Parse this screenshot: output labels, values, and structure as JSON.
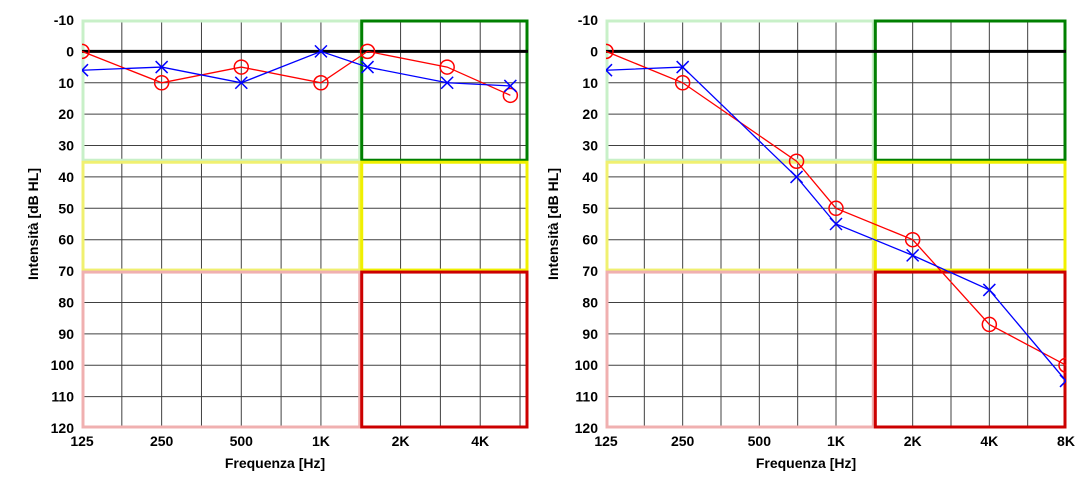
{
  "colors": {
    "right_ear": "#ff0000",
    "left_ear": "#0000ff",
    "zero_line": "#000000",
    "zone_normal": "#c8f0c8",
    "zone_normal_hf": "#008000",
    "zone_mild": "#f0f070",
    "zone_mild_hf": "#f0f000",
    "zone_severe": "#f0b0b0",
    "zone_severe_hf": "#cc0000"
  },
  "chart_data": [
    {
      "type": "line",
      "xlabel": "Frequenza [Hz]",
      "ylabel": "Intensità [dB HL]",
      "x_ticks": [
        "125",
        "250",
        "500",
        "1K",
        "2K",
        "4K"
      ],
      "y_ticks": [
        "-10",
        "0",
        "10",
        "20",
        "30",
        "40",
        "50",
        "60",
        "70",
        "80",
        "90",
        "100",
        "110",
        "120"
      ],
      "ylim": [
        -10,
        120
      ],
      "y_inverted": true,
      "x_scale": "octave",
      "grid": true,
      "series": [
        {
          "marker": "circle",
          "color": "#ff0000",
          "points": [
            {
              "x": 125,
              "y": 0
            },
            {
              "x": 250,
              "y": 10
            },
            {
              "x": 500,
              "y": 5
            },
            {
              "x": 1000,
              "y": 10
            },
            {
              "x": 1500,
              "y": 0
            },
            {
              "x": 3000,
              "y": 5
            },
            {
              "x": 5200,
              "y": 14
            }
          ]
        },
        {
          "marker": "x",
          "color": "#0000ff",
          "points": [
            {
              "x": 125,
              "y": 6
            },
            {
              "x": 250,
              "y": 5
            },
            {
              "x": 500,
              "y": 10
            },
            {
              "x": 1000,
              "y": 0
            },
            {
              "x": 1500,
              "y": 5
            },
            {
              "x": 3000,
              "y": 10
            },
            {
              "x": 5200,
              "y": 11
            }
          ]
        }
      ]
    },
    {
      "type": "line",
      "xlabel": "Frequenza [Hz]",
      "ylabel": "Intensità [dB HL]",
      "x_ticks": [
        "125",
        "250",
        "500",
        "1K",
        "2K",
        "4K",
        "8K"
      ],
      "y_ticks": [
        "-10",
        "0",
        "10",
        "20",
        "30",
        "40",
        "50",
        "60",
        "70",
        "80",
        "90",
        "100",
        "110",
        "120"
      ],
      "ylim": [
        -10,
        120
      ],
      "y_inverted": true,
      "x_scale": "octave",
      "grid": true,
      "series": [
        {
          "marker": "circle",
          "color": "#ff0000",
          "points": [
            {
              "x": 125,
              "y": 0
            },
            {
              "x": 250,
              "y": 10
            },
            {
              "x": 700,
              "y": 35
            },
            {
              "x": 1000,
              "y": 50
            },
            {
              "x": 2000,
              "y": 60
            },
            {
              "x": 4000,
              "y": 87
            },
            {
              "x": 8000,
              "y": 100
            }
          ]
        },
        {
          "marker": "x",
          "color": "#0000ff",
          "points": [
            {
              "x": 125,
              "y": 6
            },
            {
              "x": 250,
              "y": 5
            },
            {
              "x": 700,
              "y": 40
            },
            {
              "x": 1000,
              "y": 55
            },
            {
              "x": 2000,
              "y": 65
            },
            {
              "x": 4000,
              "y": 76
            },
            {
              "x": 8000,
              "y": 105
            }
          ]
        }
      ]
    }
  ]
}
